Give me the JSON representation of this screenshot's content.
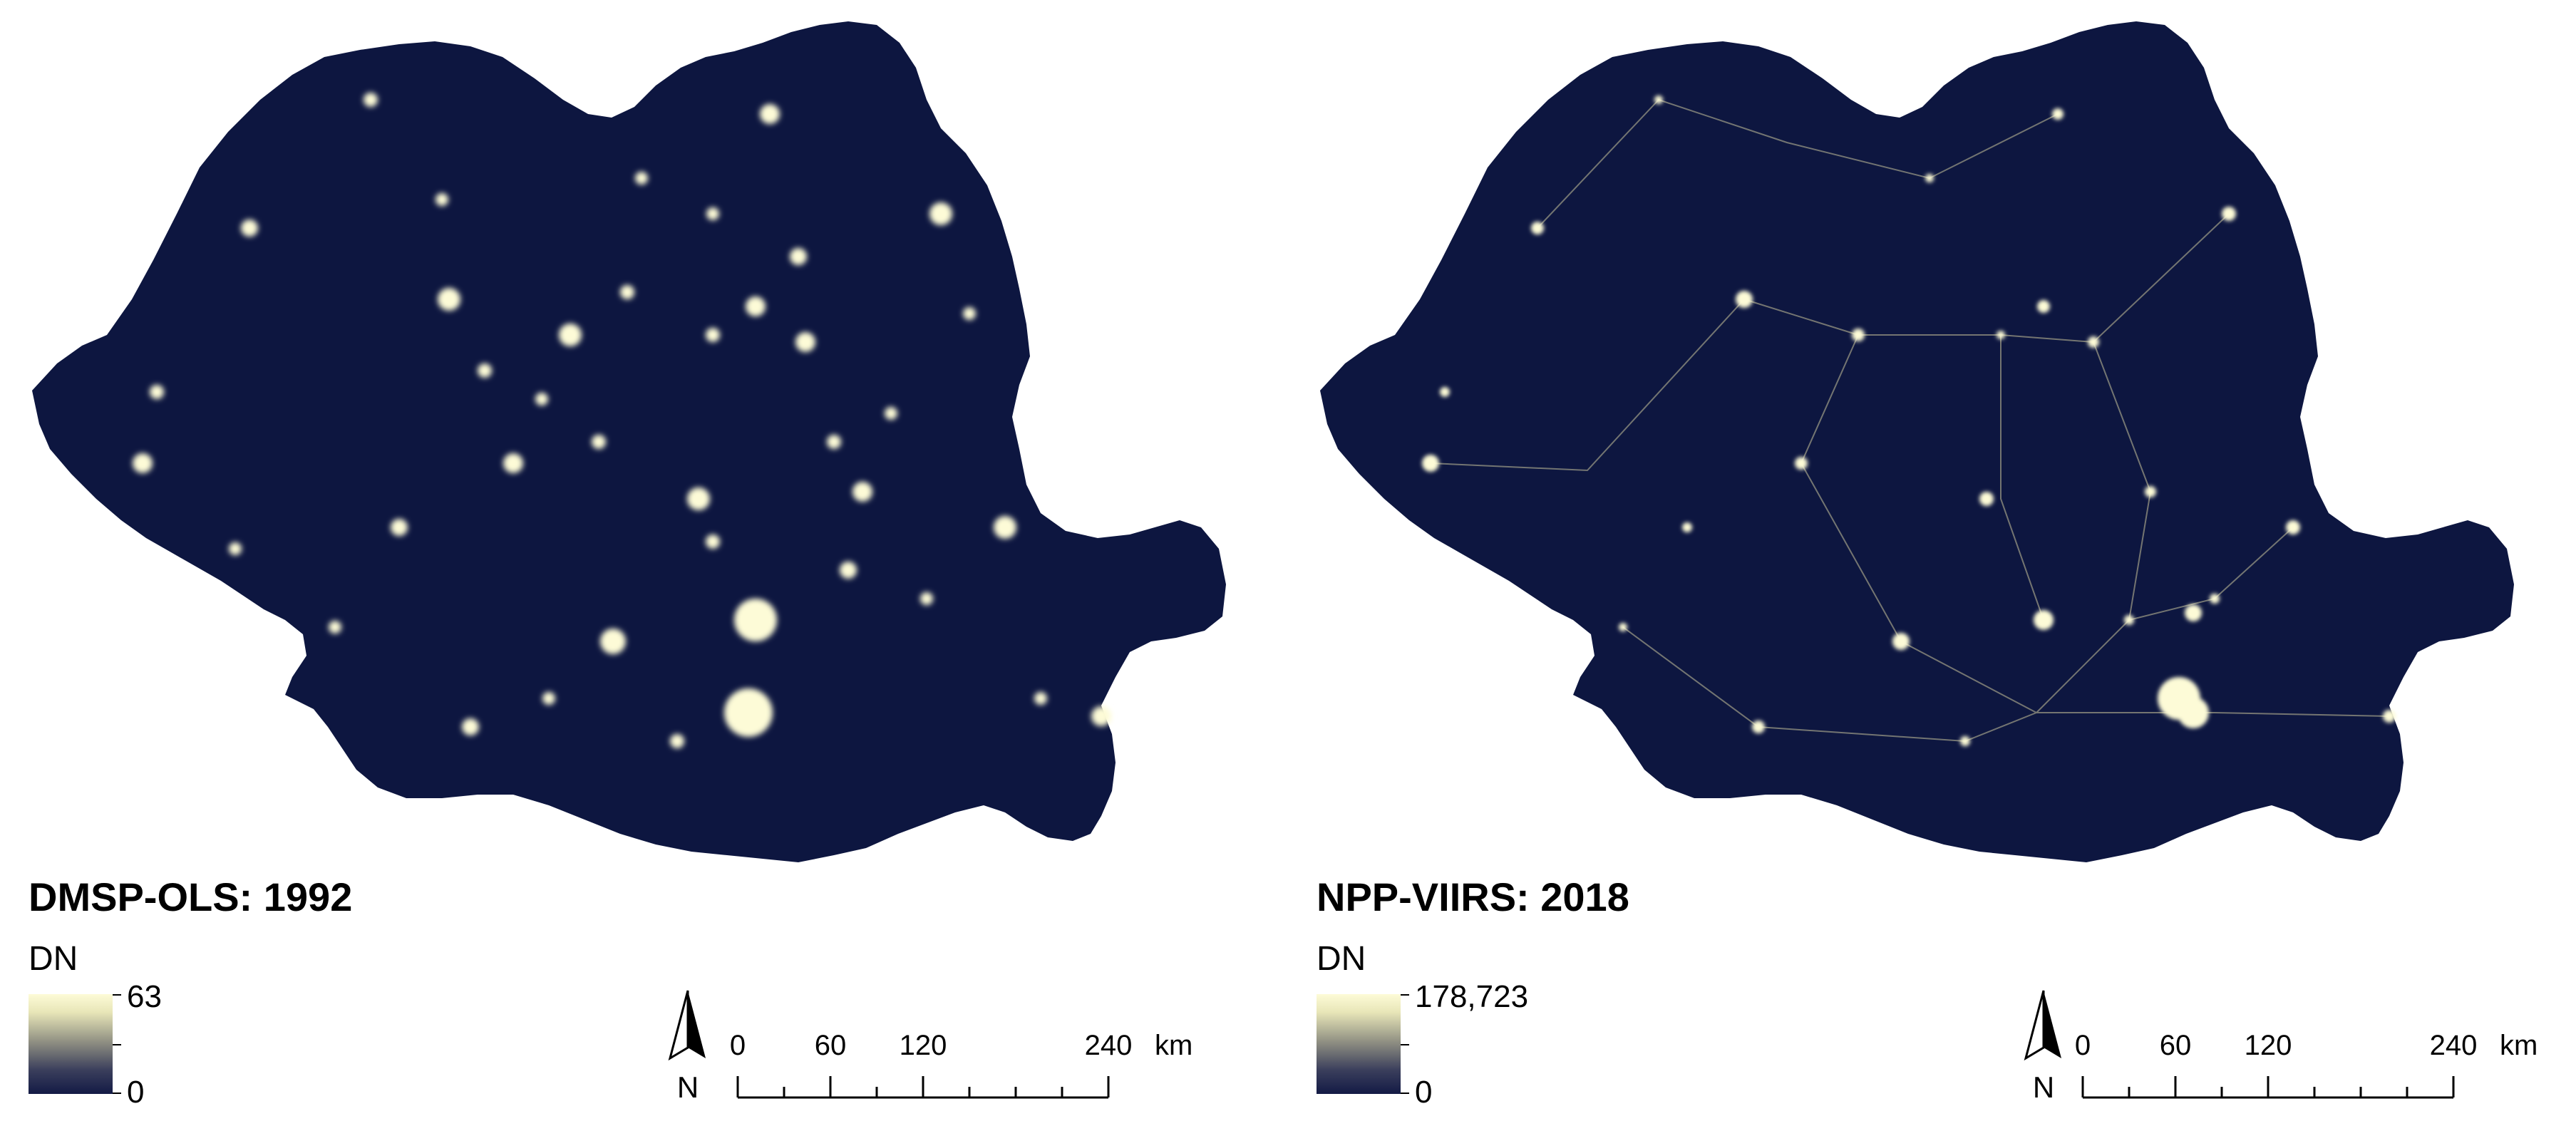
{
  "panels": [
    {
      "title": "DMSP-OLS: 1992",
      "legend": {
        "heading": "DN",
        "max_label": "63",
        "min_label": "0"
      },
      "scale": {
        "labels": [
          "0",
          "60",
          "120",
          "240"
        ],
        "unit": "km"
      },
      "north_label": "N"
    },
    {
      "title": "NPP-VIIRS: 2018",
      "legend": {
        "heading": "DN",
        "max_label": "178,723",
        "min_label": "0"
      },
      "scale": {
        "labels": [
          "0",
          "60",
          "120",
          "240"
        ],
        "unit": "km"
      },
      "north_label": "N"
    }
  ],
  "colors": {
    "background_dark": "#0d1640",
    "light_high": "#fdfbd7",
    "light_mid": "#e9e4b0"
  }
}
